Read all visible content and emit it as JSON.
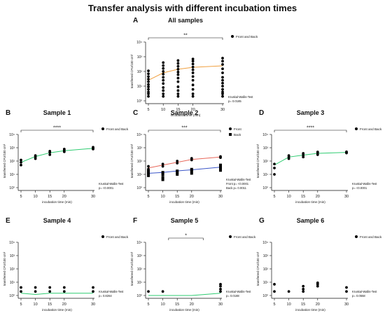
{
  "figure": {
    "title": "Transfer analysis with different incubation times"
  },
  "colors": {
    "orange": "#f0a040",
    "green": "#2ecc71",
    "red": "#e8675a",
    "blue": "#3a55c8",
    "points": "#000000"
  },
  "chart_data": [
    {
      "panel": "A",
      "title": "All samples",
      "type": "scatter",
      "xlabel": "incubation time (min)",
      "ylabel": "transferred CFU/100 cm²",
      "x_ticks": [
        5,
        10,
        15,
        20,
        30
      ],
      "x_tick_labels": [
        "5",
        "10",
        "15",
        "20",
        "30"
      ],
      "y_scale": "log",
      "y_ticks": [
        1,
        10,
        100,
        1000,
        10000
      ],
      "y_tick_labels": [
        "10⁰",
        "10¹",
        "10²",
        "10³",
        "10⁴"
      ],
      "ylim": [
        1,
        10000
      ],
      "series": [
        {
          "name": "Front and Back",
          "color": "#f0a040",
          "marker": "circle",
          "points": [
            [
              5,
              2
            ],
            [
              5,
              3
            ],
            [
              5,
              4
            ],
            [
              5,
              6
            ],
            [
              5,
              9
            ],
            [
              5,
              13
            ],
            [
              5,
              20
            ],
            [
              5,
              30
            ],
            [
              5,
              45
            ],
            [
              5,
              70
            ],
            [
              5,
              110
            ],
            [
              10,
              2
            ],
            [
              10,
              3
            ],
            [
              10,
              5
            ],
            [
              10,
              8
            ],
            [
              10,
              15
            ],
            [
              10,
              25
            ],
            [
              10,
              40
            ],
            [
              10,
              65
            ],
            [
              10,
              100
            ],
            [
              10,
              160
            ],
            [
              10,
              250
            ],
            [
              10,
              400
            ],
            [
              15,
              2
            ],
            [
              15,
              3
            ],
            [
              15,
              5
            ],
            [
              15,
              9
            ],
            [
              15,
              20
            ],
            [
              15,
              35
            ],
            [
              15,
              60
            ],
            [
              15,
              90
            ],
            [
              15,
              140
            ],
            [
              15,
              220
            ],
            [
              15,
              350
            ],
            [
              15,
              550
            ],
            [
              20,
              2
            ],
            [
              20,
              3
            ],
            [
              20,
              6
            ],
            [
              20,
              12
            ],
            [
              20,
              25
            ],
            [
              20,
              45
            ],
            [
              20,
              80
            ],
            [
              20,
              130
            ],
            [
              20,
              200
            ],
            [
              20,
              320
            ],
            [
              20,
              500
            ],
            [
              20,
              700
            ],
            [
              30,
              2
            ],
            [
              30,
              3
            ],
            [
              30,
              4
            ],
            [
              30,
              6
            ],
            [
              30,
              10
            ],
            [
              30,
              16
            ],
            [
              30,
              25
            ],
            [
              30,
              40
            ],
            [
              30,
              80
            ],
            [
              30,
              150
            ],
            [
              30,
              300
            ],
            [
              30,
              500
            ],
            [
              30,
              800
            ]
          ],
          "fit": [
            [
              5,
              25
            ],
            [
              10,
              80
            ],
            [
              15,
              140
            ],
            [
              20,
              190
            ],
            [
              30,
              240
            ]
          ]
        }
      ],
      "significance": {
        "label": "**",
        "x1": 5,
        "x2": 30
      },
      "stats": [
        "Kruskal-Wallis-Test",
        "p= 0.0185"
      ]
    },
    {
      "panel": "B",
      "title": "Sample 1",
      "type": "scatter",
      "xlabel": "incubation time (min)",
      "ylabel": "transferred CFU/100 cm²",
      "x_ticks": [
        5,
        10,
        15,
        20,
        30
      ],
      "x_tick_labels": [
        "5",
        "10",
        "15",
        "20",
        "30"
      ],
      "y_scale": "log",
      "y_ticks": [
        1,
        10,
        100,
        1000,
        10000
      ],
      "y_tick_labels": [
        "10⁰",
        "10¹",
        "10²",
        "10³",
        "10⁴"
      ],
      "ylim": [
        1,
        10000
      ],
      "series": [
        {
          "name": "Front and Back",
          "color": "#2ecc71",
          "marker": "circle",
          "points": [
            [
              5,
              50
            ],
            [
              5,
              80
            ],
            [
              5,
              120
            ],
            [
              10,
              150
            ],
            [
              10,
              200
            ],
            [
              10,
              260
            ],
            [
              15,
              300
            ],
            [
              15,
              450
            ],
            [
              15,
              550
            ],
            [
              20,
              500
            ],
            [
              20,
              650
            ],
            [
              20,
              800
            ],
            [
              30,
              800
            ],
            [
              30,
              900
            ],
            [
              30,
              1100
            ]
          ],
          "fit": [
            [
              5,
              80
            ],
            [
              10,
              220
            ],
            [
              15,
              420
            ],
            [
              20,
              600
            ],
            [
              30,
              900
            ]
          ]
        }
      ],
      "significance": {
        "label": "****",
        "x1": 5,
        "x2": 30
      },
      "stats": [
        "Kruskal-Wallis-Test",
        "p= <0.0001"
      ]
    },
    {
      "panel": "C",
      "title": "Sample 2",
      "type": "scatter",
      "xlabel": "incubation time (min)",
      "ylabel": "transferred CFU/100 cm²",
      "x_ticks": [
        5,
        10,
        15,
        20,
        30
      ],
      "x_tick_labels": [
        "5",
        "10",
        "15",
        "20",
        "30"
      ],
      "y_scale": "log",
      "y_ticks": [
        1,
        10,
        100,
        1000,
        10000
      ],
      "y_tick_labels": [
        "10⁰",
        "10¹",
        "10²",
        "10³",
        "10⁴"
      ],
      "ylim": [
        1,
        10000
      ],
      "series": [
        {
          "name": "Front",
          "color": "#e8675a",
          "marker": "circle",
          "points": [
            [
              5,
              25
            ],
            [
              5,
              40
            ],
            [
              10,
              40
            ],
            [
              10,
              60
            ],
            [
              15,
              70
            ],
            [
              15,
              100
            ],
            [
              20,
              120
            ],
            [
              20,
              160
            ],
            [
              30,
              180
            ],
            [
              30,
              220
            ]
          ],
          "fit": [
            [
              5,
              30
            ],
            [
              10,
              50
            ],
            [
              15,
              80
            ],
            [
              20,
              130
            ],
            [
              30,
              200
            ]
          ]
        },
        {
          "name": "Back",
          "color": "#3a55c8",
          "marker": "square",
          "points": [
            [
              5,
              8
            ],
            [
              5,
              12
            ],
            [
              5,
              18
            ],
            [
              10,
              4
            ],
            [
              10,
              6
            ],
            [
              10,
              10
            ],
            [
              10,
              14
            ],
            [
              15,
              10
            ],
            [
              15,
              14
            ],
            [
              15,
              18
            ],
            [
              20,
              12
            ],
            [
              20,
              18
            ],
            [
              20,
              24
            ],
            [
              30,
              20
            ],
            [
              30,
              30
            ],
            [
              30,
              40
            ],
            [
              30,
              50
            ]
          ],
          "fit": [
            [
              5,
              12
            ],
            [
              10,
              14
            ],
            [
              15,
              18
            ],
            [
              20,
              22
            ],
            [
              30,
              35
            ]
          ]
        }
      ],
      "significance": {
        "label": "***",
        "x1": 5,
        "x2": 30
      },
      "stats": [
        "Kruskal-Wallis-Test",
        "Front    p= <0.0001",
        "Back    p= 0.0011"
      ]
    },
    {
      "panel": "D",
      "title": "Sample 3",
      "type": "scatter",
      "xlabel": "incubation time (min)",
      "ylabel": "transferred CFU/100 cm²",
      "x_ticks": [
        5,
        10,
        15,
        20,
        30
      ],
      "x_tick_labels": [
        "5",
        "10",
        "15",
        "20",
        "30"
      ],
      "y_scale": "log",
      "y_ticks": [
        1,
        10,
        100,
        1000,
        10000
      ],
      "y_tick_labels": [
        "10⁰",
        "10¹",
        "10²",
        "10³",
        "10⁴"
      ],
      "ylim": [
        1,
        10000
      ],
      "series": [
        {
          "name": "Front and Back",
          "color": "#2ecc71",
          "marker": "circle",
          "points": [
            [
              5,
              10
            ],
            [
              5,
              30
            ],
            [
              5,
              60
            ],
            [
              10,
              150
            ],
            [
              10,
              200
            ],
            [
              10,
              260
            ],
            [
              15,
              200
            ],
            [
              15,
              280
            ],
            [
              15,
              380
            ],
            [
              20,
              300
            ],
            [
              20,
              400
            ],
            [
              20,
              480
            ],
            [
              30,
              400
            ],
            [
              30,
              450
            ],
            [
              30,
              500
            ]
          ],
          "fit": [
            [
              5,
              50
            ],
            [
              10,
              200
            ],
            [
              15,
              280
            ],
            [
              20,
              380
            ],
            [
              30,
              450
            ]
          ]
        }
      ],
      "significance": {
        "label": "****",
        "x1": 5,
        "x2": 30
      },
      "stats": [
        "Kruskal-Wallis-Test",
        "p= <0.0001"
      ]
    },
    {
      "panel": "E",
      "title": "Sample 4",
      "type": "scatter",
      "xlabel": "incubation time (min)",
      "ylabel": "transferred CFU/100 cm²",
      "x_ticks": [
        5,
        10,
        15,
        20,
        30
      ],
      "x_tick_labels": [
        "5",
        "10",
        "15",
        "20",
        "30"
      ],
      "y_scale": "log",
      "y_ticks": [
        1,
        10,
        100,
        1000,
        10000
      ],
      "y_tick_labels": [
        "10⁰",
        "10¹",
        "10²",
        "10³",
        "10⁴"
      ],
      "ylim": [
        1,
        10000
      ],
      "series": [
        {
          "name": "Front and Back",
          "color": "#2ecc71",
          "marker": "circle",
          "points": [
            [
              5,
              2
            ],
            [
              5,
              4
            ],
            [
              10,
              2
            ],
            [
              10,
              4
            ],
            [
              15,
              2
            ],
            [
              15,
              4
            ],
            [
              20,
              2
            ],
            [
              20,
              4
            ],
            [
              30,
              2
            ],
            [
              30,
              4
            ]
          ],
          "fit": [
            [
              5,
              1.5
            ],
            [
              10,
              1.2
            ],
            [
              15,
              1.5
            ],
            [
              20,
              1.5
            ],
            [
              30,
              1.5
            ]
          ]
        }
      ],
      "significance": null,
      "stats": [
        "Kruskal-Wallis-Test",
        "p= 0.8264"
      ]
    },
    {
      "panel": "F",
      "title": "Sample 5",
      "type": "scatter",
      "xlabel": "incubation time (min)",
      "ylabel": "transferred CFU/100 cm²",
      "x_ticks": [
        5,
        10,
        15,
        20,
        30
      ],
      "x_tick_labels": [
        "5",
        "10",
        "15",
        "20",
        "30"
      ],
      "y_scale": "log",
      "y_ticks": [
        1,
        10,
        100,
        1000,
        10000
      ],
      "y_tick_labels": [
        "10⁰",
        "10¹",
        "10²",
        "10³",
        "10⁴"
      ],
      "ylim": [
        1,
        10000
      ],
      "series": [
        {
          "name": "Front and Back",
          "color": "#2ecc71",
          "marker": "circle",
          "points": [
            [
              5,
              2
            ],
            [
              10,
              2
            ],
            [
              30,
              2
            ],
            [
              30,
              3
            ],
            [
              30,
              5
            ],
            [
              30,
              7
            ]
          ],
          "fit": [
            [
              5,
              1
            ],
            [
              10,
              1
            ],
            [
              15,
              1
            ],
            [
              20,
              1
            ],
            [
              30,
              1.5
            ]
          ]
        }
      ],
      "significance": {
        "label": "*",
        "x1": 12,
        "x2": 24
      },
      "stats": [
        "Kruskal-Wallis-Test",
        "p= 0.0188"
      ]
    },
    {
      "panel": "G",
      "title": "Sample 6",
      "type": "scatter",
      "xlabel": "incubation time (min)",
      "ylabel": "transferred CFU/100 cm²",
      "x_ticks": [
        5,
        10,
        15,
        20,
        30
      ],
      "x_tick_labels": [
        "5",
        "10",
        "15",
        "20",
        "30"
      ],
      "y_scale": "log",
      "y_ticks": [
        1,
        10,
        100,
        1000,
        10000
      ],
      "y_tick_labels": [
        "10⁰",
        "10¹",
        "10²",
        "10³",
        "10⁴"
      ],
      "ylim": [
        1,
        10000
      ],
      "series": [
        {
          "name": "Front and Back",
          "color": "#000000",
          "marker": "circle",
          "points": [
            [
              5,
              2
            ],
            [
              5,
              7
            ],
            [
              10,
              2
            ],
            [
              15,
              2
            ],
            [
              15,
              3
            ],
            [
              15,
              5
            ],
            [
              20,
              5
            ],
            [
              20,
              7
            ],
            [
              20,
              9
            ],
            [
              30,
              2
            ],
            [
              30,
              4
            ]
          ],
          "fit": null
        }
      ],
      "significance": null,
      "stats": [
        "Kruskal-Wallis-Test",
        "p= 0.0558"
      ]
    }
  ]
}
